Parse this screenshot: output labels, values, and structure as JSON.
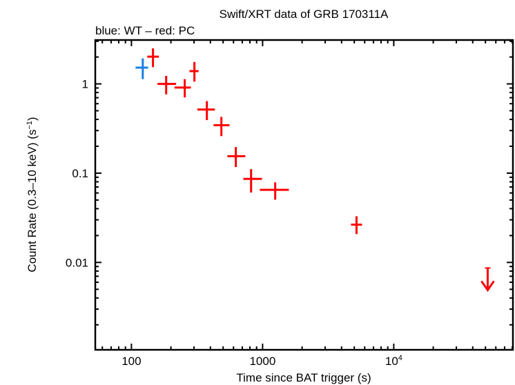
{
  "chart_data": {
    "type": "scatter",
    "title": "Swift/XRT data of GRB 170311A",
    "subtitle": "blue: WT – red: PC",
    "xlabel": "Time since BAT trigger (s)",
    "ylabel": "Count Rate (0.3–10 keV) (s",
    "ylabel_sup": "−1",
    "ylabel_end": ")",
    "x_scale": "log",
    "y_scale": "log",
    "xlim": [
      53,
      81000
    ],
    "ylim": [
      0.00105,
      3.1
    ],
    "grid": false,
    "x_ticks": [
      {
        "value": 100,
        "label": "100"
      },
      {
        "value": 1000,
        "label": "1000"
      },
      {
        "value": 10000,
        "label": "10",
        "sup": "4"
      }
    ],
    "y_ticks": [
      {
        "value": 1,
        "label": "1"
      },
      {
        "value": 0.1,
        "label": "0.1"
      },
      {
        "value": 0.01,
        "label": "0.01"
      }
    ],
    "series": [
      {
        "mode": "WT",
        "color": "#1a7fe6",
        "points": [
          {
            "t": 122,
            "t_lo": 107.5,
            "t_hi": 134,
            "rate": 1.52,
            "rate_lo": 1.13,
            "rate_hi": 1.93
          }
        ]
      },
      {
        "mode": "PC",
        "color": "#ff0000",
        "points": [
          {
            "t": 146,
            "t_lo": 132,
            "t_hi": 162,
            "rate": 2.02,
            "rate_lo": 1.54,
            "rate_hi": 2.5
          },
          {
            "t": 184,
            "t_lo": 158,
            "t_hi": 219,
            "rate": 1.0,
            "rate_lo": 0.763,
            "rate_hi": 1.23
          },
          {
            "t": 255,
            "t_lo": 213,
            "t_hi": 284,
            "rate": 0.91,
            "rate_lo": 0.705,
            "rate_hi": 1.13
          },
          {
            "t": 302,
            "t_lo": 277,
            "t_hi": 325,
            "rate": 1.39,
            "rate_lo": 1.06,
            "rate_hi": 1.76
          },
          {
            "t": 376,
            "t_lo": 318,
            "t_hi": 433,
            "rate": 0.516,
            "rate_lo": 0.393,
            "rate_hi": 0.642
          },
          {
            "t": 485,
            "t_lo": 423,
            "t_hi": 559,
            "rate": 0.344,
            "rate_lo": 0.26,
            "rate_hi": 0.427
          },
          {
            "t": 625,
            "t_lo": 539,
            "t_hi": 738,
            "rate": 0.155,
            "rate_lo": 0.117,
            "rate_hi": 0.196
          },
          {
            "t": 817,
            "t_lo": 713,
            "t_hi": 988,
            "rate": 0.0863,
            "rate_lo": 0.0607,
            "rate_hi": 0.111
          },
          {
            "t": 1248,
            "t_lo": 953,
            "t_hi": 1585,
            "rate": 0.065,
            "rate_lo": 0.0505,
            "rate_hi": 0.079
          },
          {
            "t": 5200,
            "t_lo": 4720,
            "t_hi": 5730,
            "rate": 0.0265,
            "rate_lo": 0.0208,
            "rate_hi": 0.0329
          }
        ],
        "upper_limits": [
          {
            "t": 52000,
            "rate": 0.00866
          }
        ]
      }
    ]
  }
}
